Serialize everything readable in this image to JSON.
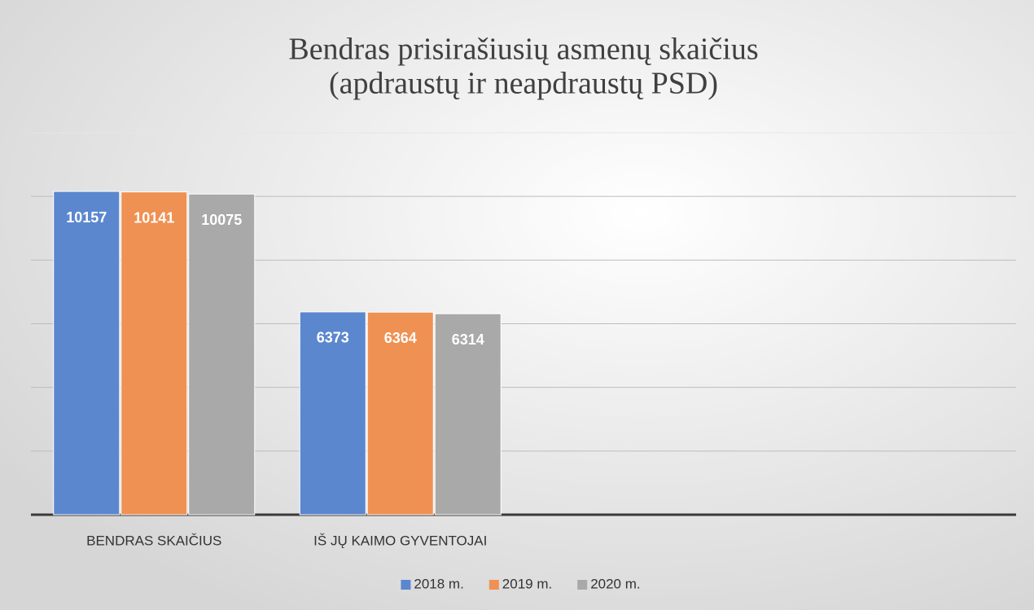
{
  "chart_data": {
    "type": "bar",
    "title": "Bendras prisirašiusių asmenų skaičius",
    "subtitle": "(apdraustų ir neapdraustų PSD)",
    "categories": [
      "BENDRAS SKAIČIUS",
      "IŠ JŲ KAIMO GYVENTOJAI",
      null,
      null
    ],
    "series": [
      {
        "name": "2018 m.",
        "color": "#5b87cf",
        "values": [
          10157,
          6373,
          null,
          null
        ]
      },
      {
        "name": "2019 m.",
        "color": "#ef9152",
        "values": [
          10141,
          6364,
          null,
          null
        ]
      },
      {
        "name": "2020 m.",
        "color": "#a9a9a9",
        "values": [
          10075,
          6314,
          null,
          null
        ]
      }
    ],
    "ylim": [
      0,
      12000
    ],
    "yticks": [
      0,
      2000,
      4000,
      6000,
      8000,
      10000,
      12000
    ],
    "grid": true,
    "legend": "bottom"
  }
}
